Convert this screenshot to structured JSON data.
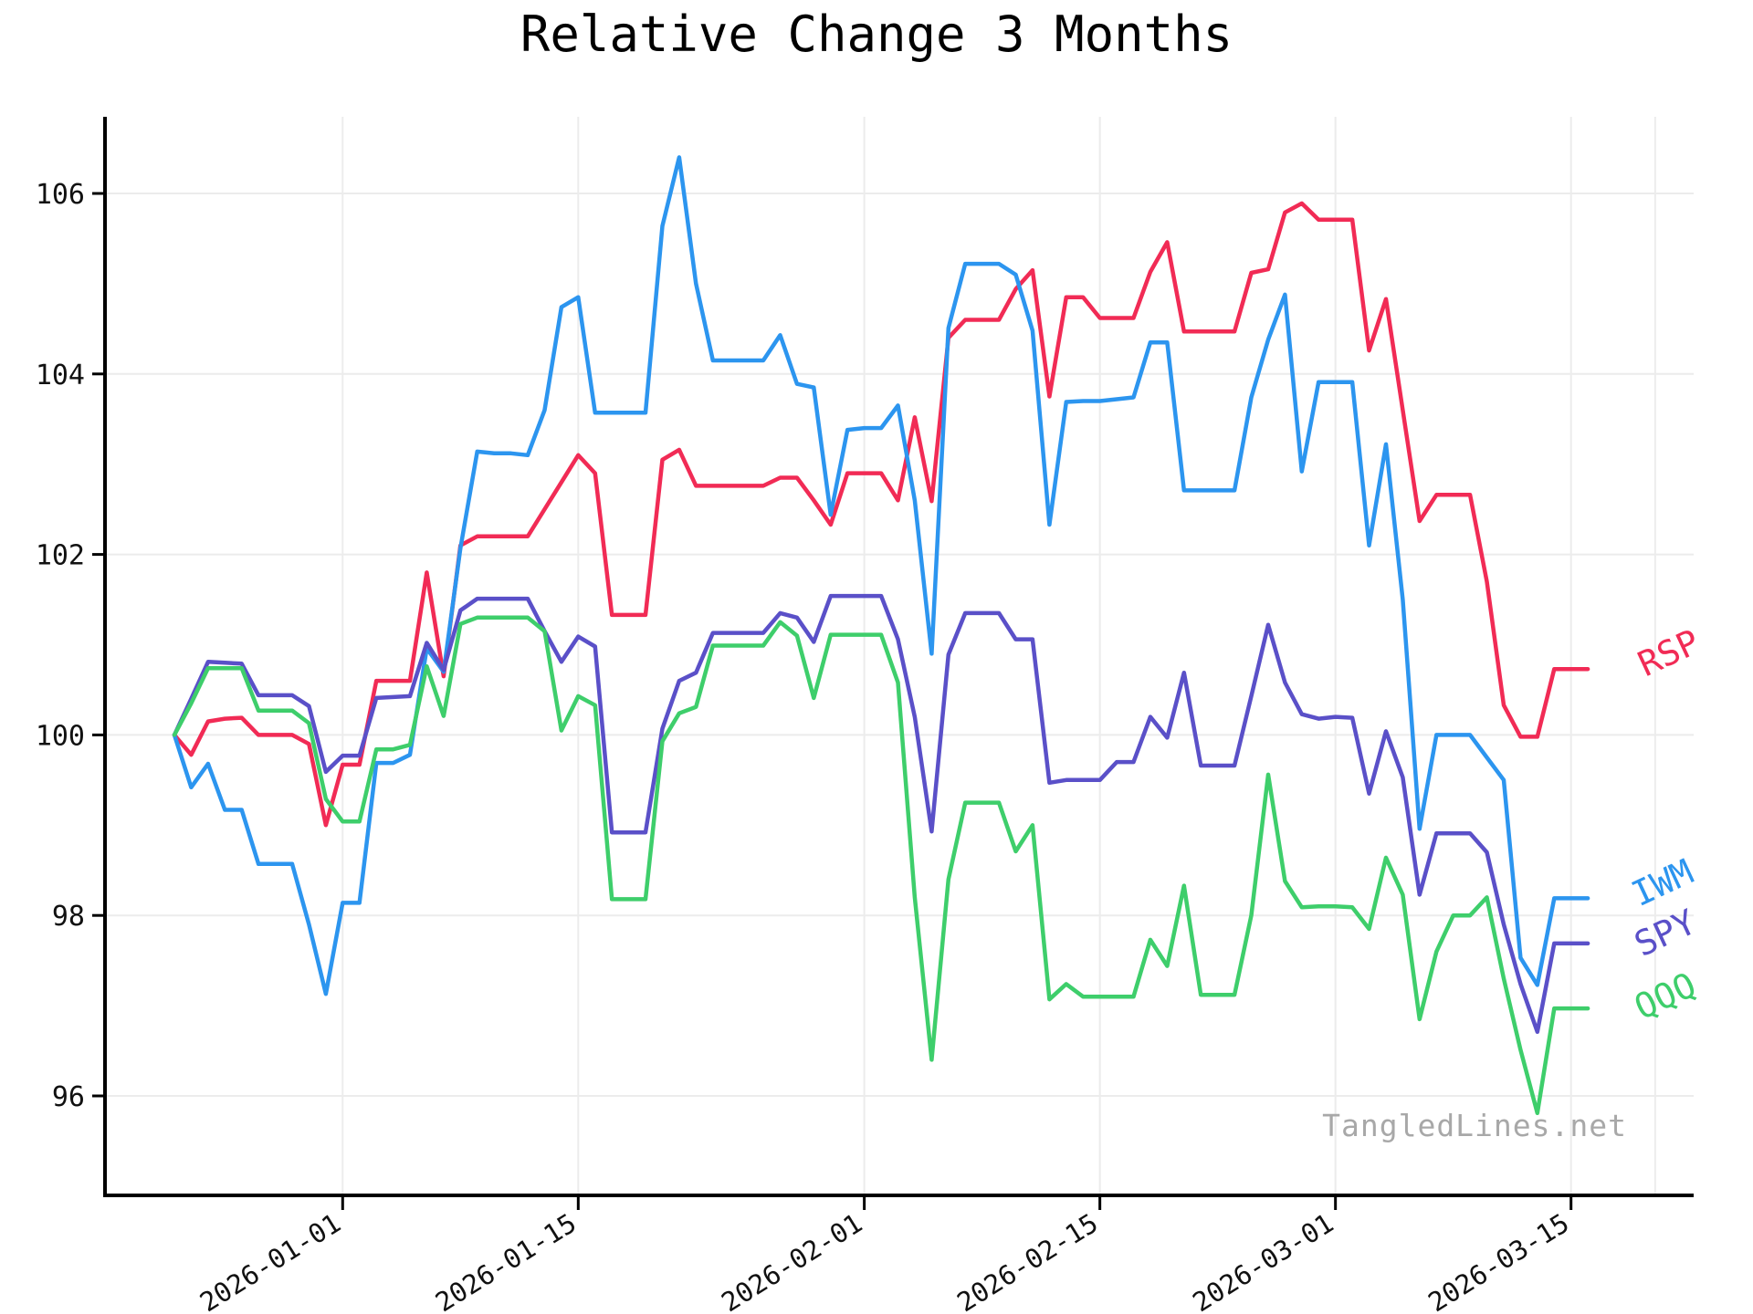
{
  "title": "Relative Change 3 Months",
  "watermark": "TangledLines.net",
  "axes": {
    "y_ticks": [
      96,
      98,
      100,
      102,
      104,
      106
    ],
    "x_ticks": [
      {
        "date": "2026-01-01",
        "label": "2026-01-01"
      },
      {
        "date": "2026-01-15",
        "label": "2026-01-15"
      },
      {
        "date": "2026-02-01",
        "label": "2026-02-01"
      },
      {
        "date": "2026-02-15",
        "label": "2026-02-15"
      },
      {
        "date": "2026-03-01",
        "label": "2026-03-01"
      },
      {
        "date": "2026-03-15",
        "label": "2026-03-15"
      },
      {
        "date": "2026-03-20",
        "label": ""
      }
    ]
  },
  "legend": [
    {
      "name": "RSP",
      "color": "#f12b55"
    },
    {
      "name": "IWM",
      "color": "#2c95ef"
    },
    {
      "name": "SPY",
      "color": "#5a50c8"
    },
    {
      "name": "QQQ",
      "color": "#3ece6b"
    }
  ],
  "chart_data": {
    "type": "line",
    "title": "Relative Change 3 Months",
    "xlabel": "",
    "ylabel": "",
    "ylim": [
      94.9,
      106.85
    ],
    "grid": true,
    "legend_position": "right-of-line-ends",
    "x": [
      "2025-12-22",
      "2025-12-23",
      "2025-12-24",
      "2025-12-25",
      "2025-12-26",
      "2025-12-27",
      "2025-12-28",
      "2025-12-29",
      "2025-12-30",
      "2025-12-31",
      "2026-01-01",
      "2026-01-02",
      "2026-01-03",
      "2026-01-04",
      "2026-01-05",
      "2026-01-06",
      "2026-01-07",
      "2026-01-08",
      "2026-01-09",
      "2026-01-10",
      "2026-01-11",
      "2026-01-12",
      "2026-01-13",
      "2026-01-14",
      "2026-01-15",
      "2026-01-16",
      "2026-01-17",
      "2026-01-18",
      "2026-01-19",
      "2026-01-20",
      "2026-01-21",
      "2026-01-22",
      "2026-01-23",
      "2026-01-24",
      "2026-01-25",
      "2026-01-26",
      "2026-01-27",
      "2026-01-28",
      "2026-01-29",
      "2026-01-30",
      "2026-01-31",
      "2026-02-01",
      "2026-02-02",
      "2026-02-03",
      "2026-02-04",
      "2026-02-05",
      "2026-02-06",
      "2026-02-07",
      "2026-02-08",
      "2026-02-09",
      "2026-02-10",
      "2026-02-11",
      "2026-02-12",
      "2026-02-13",
      "2026-02-14",
      "2026-02-15",
      "2026-02-16",
      "2026-02-17",
      "2026-02-18",
      "2026-02-19",
      "2026-02-20",
      "2026-02-21",
      "2026-02-22",
      "2026-02-23",
      "2026-02-24",
      "2026-02-25",
      "2026-02-26",
      "2026-02-27",
      "2026-02-28",
      "2026-03-01",
      "2026-03-02",
      "2026-03-03",
      "2026-03-04",
      "2026-03-05",
      "2026-03-06",
      "2026-03-07",
      "2026-03-08",
      "2026-03-09",
      "2026-03-10",
      "2026-03-11",
      "2026-03-12",
      "2026-03-13",
      "2026-03-14",
      "2026-03-15",
      "2026-03-16"
    ],
    "series": [
      {
        "name": "RSP",
        "color": "#f12b55",
        "values": [
          100.0,
          99.78,
          100.15,
          100.18,
          100.19,
          100.0,
          100.0,
          100.0,
          99.9,
          99.0,
          99.67,
          99.67,
          100.6,
          100.6,
          100.6,
          101.8,
          100.65,
          102.1,
          102.2,
          102.2,
          102.2,
          102.2,
          102.5,
          102.8,
          103.1,
          102.9,
          101.33,
          101.33,
          101.33,
          103.05,
          103.16,
          102.76,
          102.76,
          102.76,
          102.76,
          102.76,
          102.85,
          102.85,
          102.6,
          102.33,
          102.9,
          102.9,
          102.9,
          102.6,
          103.52,
          102.59,
          104.4,
          104.6,
          104.6,
          104.6,
          104.94,
          105.15,
          103.75,
          104.85,
          104.85,
          104.62,
          104.62,
          104.62,
          105.13,
          105.46,
          104.47,
          104.47,
          104.47,
          104.47,
          105.12,
          105.16,
          105.79,
          105.89,
          105.71,
          105.71,
          105.71,
          104.26,
          104.83,
          103.6,
          102.37,
          102.66,
          102.66,
          102.66,
          101.7,
          100.33,
          99.98,
          99.98,
          100.73,
          100.73,
          100.73
        ]
      },
      {
        "name": "IWM",
        "color": "#2c95ef",
        "values": [
          100.0,
          99.42,
          99.68,
          99.17,
          99.17,
          98.57,
          98.57,
          98.57,
          97.9,
          97.13,
          98.14,
          98.14,
          99.69,
          99.69,
          99.78,
          100.96,
          100.7,
          102.07,
          103.14,
          103.12,
          103.12,
          103.1,
          103.6,
          104.74,
          104.85,
          103.57,
          103.57,
          103.57,
          103.57,
          105.64,
          106.4,
          105.0,
          104.15,
          104.15,
          104.15,
          104.15,
          104.43,
          103.89,
          103.85,
          102.44,
          103.38,
          103.4,
          103.4,
          103.65,
          102.6,
          100.9,
          104.51,
          105.22,
          105.22,
          105.22,
          105.1,
          104.48,
          102.33,
          103.69,
          103.7,
          103.7,
          103.72,
          103.74,
          104.35,
          104.35,
          102.71,
          102.71,
          102.71,
          102.71,
          103.74,
          104.38,
          104.88,
          102.92,
          103.91,
          103.91,
          103.91,
          102.1,
          103.22,
          101.5,
          98.96,
          100.0,
          100.0,
          100.0,
          99.75,
          99.5,
          97.53,
          97.23,
          98.19,
          98.19,
          98.19
        ]
      },
      {
        "name": "SPY",
        "color": "#5a50c8",
        "values": [
          100.0,
          100.4,
          100.81,
          100.8,
          100.79,
          100.44,
          100.44,
          100.44,
          100.32,
          99.59,
          99.77,
          99.77,
          100.41,
          100.42,
          100.43,
          101.02,
          100.72,
          101.38,
          101.51,
          101.51,
          101.51,
          101.51,
          101.15,
          100.81,
          101.09,
          100.98,
          98.92,
          98.92,
          98.92,
          100.07,
          100.6,
          100.69,
          101.13,
          101.13,
          101.13,
          101.13,
          101.35,
          101.3,
          101.03,
          101.54,
          101.54,
          101.54,
          101.54,
          101.06,
          100.2,
          98.93,
          100.89,
          101.35,
          101.35,
          101.35,
          101.06,
          101.06,
          99.47,
          99.5,
          99.5,
          99.5,
          99.7,
          99.7,
          100.2,
          99.97,
          100.69,
          99.66,
          99.66,
          99.66,
          100.43,
          101.22,
          100.58,
          100.23,
          100.18,
          100.2,
          100.19,
          99.35,
          100.04,
          99.53,
          98.23,
          98.91,
          98.91,
          98.91,
          98.7,
          97.9,
          97.24,
          96.71,
          97.69,
          97.69,
          97.69
        ]
      },
      {
        "name": "QQQ",
        "color": "#3ece6b",
        "values": [
          100.0,
          100.35,
          100.74,
          100.74,
          100.74,
          100.27,
          100.27,
          100.27,
          100.13,
          99.29,
          99.04,
          99.04,
          99.84,
          99.84,
          99.89,
          100.76,
          100.21,
          101.23,
          101.3,
          101.3,
          101.3,
          101.3,
          101.15,
          100.05,
          100.43,
          100.33,
          98.18,
          98.18,
          98.18,
          99.93,
          100.24,
          100.31,
          100.99,
          100.99,
          100.99,
          100.99,
          101.25,
          101.1,
          100.41,
          101.11,
          101.11,
          101.11,
          101.11,
          100.58,
          98.2,
          96.4,
          98.4,
          99.25,
          99.25,
          99.25,
          98.71,
          99.0,
          97.07,
          97.24,
          97.1,
          97.1,
          97.1,
          97.1,
          97.73,
          97.44,
          98.33,
          97.12,
          97.12,
          97.12,
          98.0,
          99.56,
          98.38,
          98.09,
          98.1,
          98.1,
          98.09,
          97.85,
          98.64,
          98.23,
          96.85,
          97.6,
          98.0,
          98.0,
          98.2,
          97.3,
          96.51,
          95.81,
          96.97,
          96.97,
          96.97
        ]
      }
    ]
  },
  "style": {
    "grid_color": "#ececec",
    "axis_color": "#000000",
    "tick_label_color": "#111111",
    "line_width": 4.5
  }
}
